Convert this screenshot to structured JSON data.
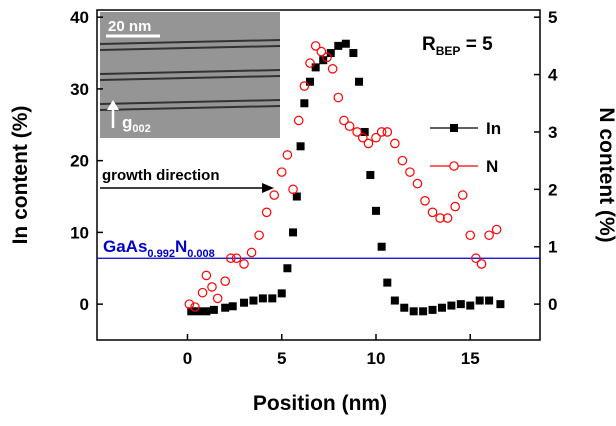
{
  "chart_data": {
    "type": "scatter",
    "xlabel": "Position (nm)",
    "ylabel": "In content (%)",
    "y2label": "N content (%)",
    "xlim": [
      -4.8,
      18.7
    ],
    "xticks": [
      0,
      5,
      10,
      15
    ],
    "ylim": [
      -5,
      41
    ],
    "yticks": [
      0,
      10,
      20,
      30,
      40
    ],
    "y2lim": [
      -0.625,
      5.125
    ],
    "y2ticks": [
      0,
      1,
      2,
      3,
      4,
      5
    ],
    "annotations": {
      "rbep": {
        "main": "R",
        "sub": "BEP",
        "rest": " = 5"
      },
      "scale": "20 nm",
      "g": {
        "main": "g",
        "sub": "002"
      },
      "growth": "growth direction",
      "ref": {
        "parts": [
          "GaAs",
          "0.992",
          "N",
          "0.008"
        ],
        "value": 0.8,
        "axis": "y2",
        "color": "#0000cc"
      }
    },
    "legend": "upper right",
    "series": [
      {
        "name": "In",
        "color": "#000000",
        "marker": "square",
        "x": [
          0.2,
          0.6,
          1.0,
          1.4,
          2.0,
          2.4,
          3.0,
          3.5,
          4.0,
          4.5,
          5.0,
          5.3,
          5.6,
          5.8,
          6.0,
          6.2,
          6.5,
          6.8,
          7.2,
          7.6,
          8.0,
          8.4,
          8.8,
          9.1,
          9.4,
          9.7,
          10.0,
          10.3,
          10.6,
          11.0,
          11.5,
          12.0,
          12.5,
          13.0,
          13.5,
          14.0,
          14.5,
          15.0,
          15.5,
          16.0,
          16.6
        ],
        "values": [
          -1,
          -1,
          -1,
          -0.8,
          -0.5,
          -0.3,
          0.2,
          0.5,
          0.8,
          0.8,
          1.5,
          5,
          10,
          15,
          22,
          28,
          31,
          33,
          34,
          35,
          36,
          36.3,
          35,
          31,
          24,
          18,
          13,
          8,
          3,
          0.5,
          -0.5,
          -1,
          -1,
          -0.8,
          -0.5,
          -0.2,
          0,
          -0.2,
          0.5,
          0.5,
          0
        ]
      },
      {
        "name": "N",
        "color": "#ff0000",
        "marker": "circle",
        "axis": "y2",
        "x": [
          0.1,
          0.4,
          0.8,
          1.0,
          1.3,
          1.6,
          2.0,
          2.3,
          2.6,
          3.0,
          3.4,
          3.8,
          4.2,
          4.6,
          5.0,
          5.3,
          5.6,
          5.9,
          6.2,
          6.5,
          6.8,
          7.1,
          7.4,
          7.7,
          8.0,
          8.3,
          8.6,
          9.0,
          9.3,
          9.6,
          10.0,
          10.3,
          10.6,
          11.0,
          11.4,
          11.8,
          12.2,
          12.6,
          13.0,
          13.4,
          13.8,
          14.2,
          14.6,
          15.0,
          15.3,
          15.6,
          16.0,
          16.4
        ],
        "values": [
          0,
          -0.05,
          0.2,
          0.5,
          0.3,
          0.1,
          0.4,
          0.8,
          0.8,
          0.7,
          0.9,
          1.2,
          1.6,
          1.9,
          2.3,
          2.6,
          2.0,
          3.2,
          3.8,
          4.2,
          4.5,
          4.4,
          4.3,
          4.1,
          3.6,
          3.2,
          3.1,
          3.0,
          2.9,
          2.8,
          2.9,
          3.0,
          3.0,
          2.8,
          2.5,
          2.3,
          2.1,
          1.8,
          1.6,
          1.5,
          1.5,
          1.7,
          1.9,
          1.2,
          0.8,
          0.7,
          1.2,
          1.3
        ]
      }
    ]
  }
}
